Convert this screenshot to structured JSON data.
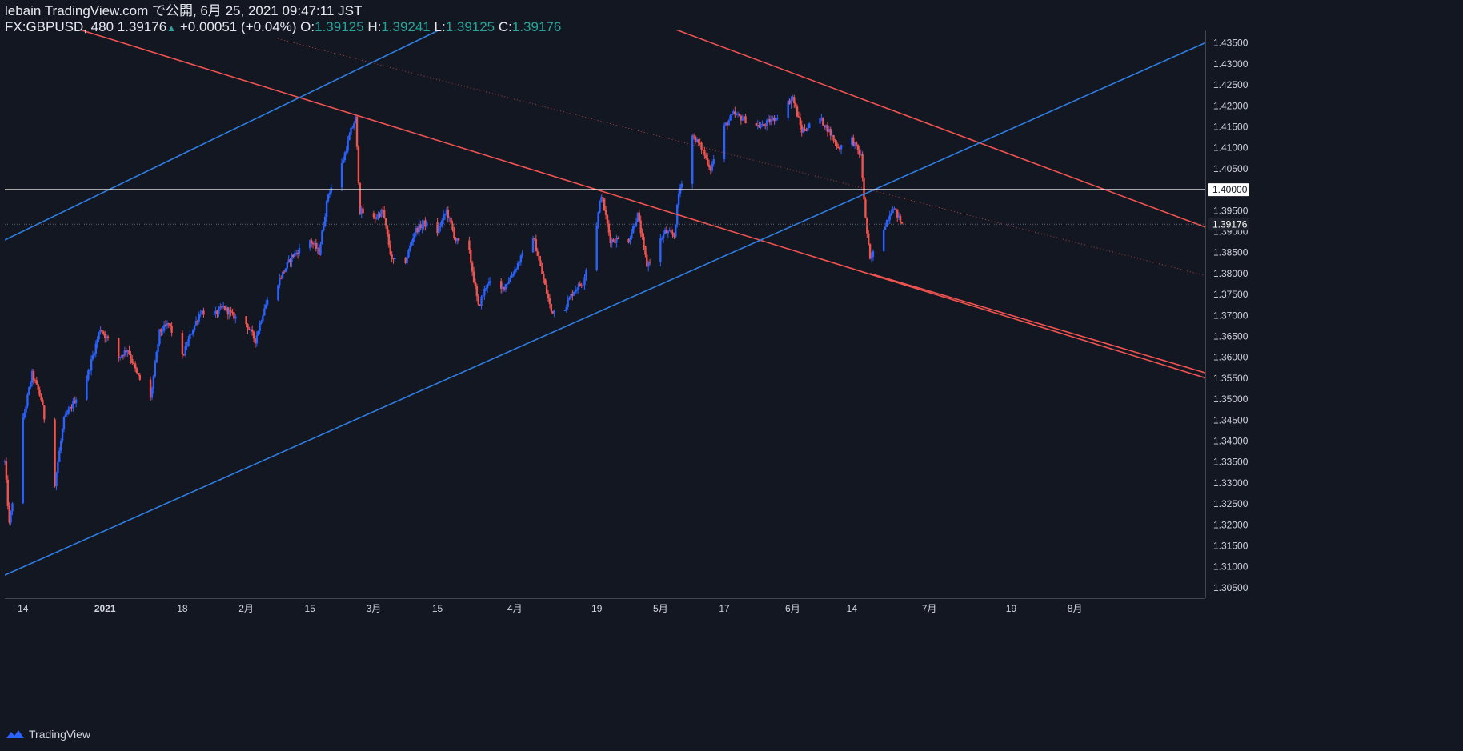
{
  "header": {
    "publish_line": "lebain TradingView.com で公開, 6月 25, 2021 09:47:11 JST",
    "symbol": "FX:GBPUSD, 480",
    "last": "1.39176",
    "change": "+0.00051 (+0.04%)",
    "o_label": "O:",
    "o_value": "1.39125",
    "h_label": "H:",
    "h_value": "1.39241",
    "l_label": "L:",
    "l_value": "1.39125",
    "c_label": "C:",
    "c_value": "1.39176"
  },
  "footer": {
    "brand": "TradingView"
  },
  "colors": {
    "background": "#131722",
    "up_candle": "#2962ff",
    "down_candle": "#ef5350",
    "red_line": "#f05350",
    "blue_line": "#2f7de1",
    "horizontal_line": "#ffffff",
    "text": "#d1d4dc",
    "price_green": "#26a69a"
  },
  "chart_data": {
    "type": "candlestick",
    "symbol": "FX:GBPUSD",
    "interval": "480",
    "ylim": [
      1.3025,
      1.438
    ],
    "y_ticks": [
      "1.43500",
      "1.43000",
      "1.42500",
      "1.42000",
      "1.41500",
      "1.41000",
      "1.40500",
      "1.40000",
      "1.39500",
      "1.39000",
      "1.38500",
      "1.38000",
      "1.37500",
      "1.37000",
      "1.36500",
      "1.36000",
      "1.35500",
      "1.35000",
      "1.34500",
      "1.34000",
      "1.33500",
      "1.33000",
      "1.32500",
      "1.32000",
      "1.31500",
      "1.31000",
      "1.30500"
    ],
    "x_ticks": [
      "14",
      "2021",
      "18",
      "2月",
      "15",
      "3月",
      "15",
      "4月",
      "19",
      "5月",
      "17",
      "6月",
      "14",
      "7月",
      "19",
      "8月"
    ],
    "last_price_label": "1.39176",
    "horizontal_level": "1.40000",
    "anchors": [
      [
        "2020-12-10",
        1.335
      ],
      [
        "2020-12-11",
        1.32
      ],
      [
        "2020-12-14",
        1.345
      ],
      [
        "2020-12-16",
        1.356
      ],
      [
        "2020-12-18",
        1.35
      ],
      [
        "2020-12-21",
        1.33
      ],
      [
        "2020-12-23",
        1.345
      ],
      [
        "2020-12-28",
        1.355
      ],
      [
        "2020-12-31",
        1.367
      ],
      [
        "2021-01-04",
        1.36
      ],
      [
        "2021-01-06",
        1.362
      ],
      [
        "2021-01-08",
        1.356
      ],
      [
        "2021-01-11",
        1.35
      ],
      [
        "2021-01-13",
        1.366
      ],
      [
        "2021-01-15",
        1.368
      ],
      [
        "2021-01-18",
        1.36
      ],
      [
        "2021-01-20",
        1.366
      ],
      [
        "2021-01-22",
        1.371
      ],
      [
        "2021-01-25",
        1.37
      ],
      [
        "2021-01-27",
        1.372
      ],
      [
        "2021-01-29",
        1.37
      ],
      [
        "2021-02-01",
        1.368
      ],
      [
        "2021-02-03",
        1.364
      ],
      [
        "2021-02-05",
        1.372
      ],
      [
        "2021-02-09",
        1.38
      ],
      [
        "2021-02-11",
        1.384
      ],
      [
        "2021-02-15",
        1.388
      ],
      [
        "2021-02-17",
        1.385
      ],
      [
        "2021-02-19",
        1.399
      ],
      [
        "2021-02-22",
        1.406
      ],
      [
        "2021-02-24",
        1.414
      ],
      [
        "2021-02-25",
        1.417
      ],
      [
        "2021-02-26",
        1.395
      ],
      [
        "2021-03-01",
        1.393
      ],
      [
        "2021-03-03",
        1.395
      ],
      [
        "2021-03-05",
        1.383
      ],
      [
        "2021-03-08",
        1.383
      ],
      [
        "2021-03-10",
        1.39
      ],
      [
        "2021-03-12",
        1.392
      ],
      [
        "2021-03-15",
        1.39
      ],
      [
        "2021-03-17",
        1.395
      ],
      [
        "2021-03-19",
        1.388
      ],
      [
        "2021-03-22",
        1.385
      ],
      [
        "2021-03-24",
        1.372
      ],
      [
        "2021-03-26",
        1.378
      ],
      [
        "2021-03-29",
        1.376
      ],
      [
        "2021-03-31",
        1.379
      ],
      [
        "2021-04-02",
        1.383
      ],
      [
        "2021-04-05",
        1.389
      ],
      [
        "2021-04-07",
        1.38
      ],
      [
        "2021-04-09",
        1.371
      ],
      [
        "2021-04-12",
        1.372
      ],
      [
        "2021-04-14",
        1.376
      ],
      [
        "2021-04-16",
        1.378
      ],
      [
        "2021-04-19",
        1.392
      ],
      [
        "2021-04-20",
        1.399
      ],
      [
        "2021-04-22",
        1.388
      ],
      [
        "2021-04-26",
        1.388
      ],
      [
        "2021-04-28",
        1.394
      ],
      [
        "2021-04-30",
        1.382
      ],
      [
        "2021-05-04",
        1.39
      ],
      [
        "2021-05-06",
        1.389
      ],
      [
        "2021-05-07",
        1.399
      ],
      [
        "2021-05-10",
        1.413
      ],
      [
        "2021-05-12",
        1.41
      ],
      [
        "2021-05-14",
        1.405
      ],
      [
        "2021-05-17",
        1.415
      ],
      [
        "2021-05-19",
        1.418
      ],
      [
        "2021-05-21",
        1.417
      ],
      [
        "2021-05-25",
        1.415
      ],
      [
        "2021-05-28",
        1.417
      ],
      [
        "2021-06-01",
        1.422
      ],
      [
        "2021-06-03",
        1.414
      ],
      [
        "2021-06-07",
        1.417
      ],
      [
        "2021-06-09",
        1.414
      ],
      [
        "2021-06-11",
        1.41
      ],
      [
        "2021-06-14",
        1.412
      ],
      [
        "2021-06-16",
        1.408
      ],
      [
        "2021-06-17",
        1.393
      ],
      [
        "2021-06-18",
        1.383
      ],
      [
        "2021-06-21",
        1.391
      ],
      [
        "2021-06-23",
        1.396
      ],
      [
        "2021-06-25",
        1.3918
      ]
    ],
    "trendlines": [
      {
        "name": "red-upper-channel",
        "color": "red",
        "points": [
          [
            "2021-04-27",
            1.442
          ],
          [
            "2021-08-16",
            1.397
          ]
        ]
      },
      {
        "name": "red-mid-channel",
        "color": "red",
        "points": [
          [
            "2020-12-30",
            1.437
          ],
          [
            "2021-08-16",
            1.36
          ]
        ]
      },
      {
        "name": "red-lower-channel",
        "color": "red",
        "points": [
          [
            "2021-06-18",
            1.38
          ],
          [
            "2021-08-16",
            1.361
          ]
        ]
      },
      {
        "name": "blue-lower-trend",
        "color": "blue",
        "points": [
          [
            "2020-12-10",
            1.308
          ],
          [
            "2021-08-16",
            1.428
          ]
        ]
      },
      {
        "name": "blue-upper-trend",
        "color": "blue",
        "points": [
          [
            "2020-12-10",
            1.388
          ],
          [
            "2021-03-19",
            1.44
          ]
        ]
      }
    ]
  }
}
